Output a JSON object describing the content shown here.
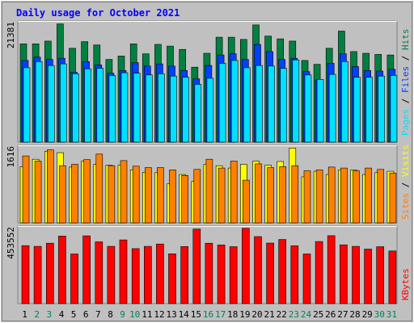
{
  "title": "Daily usage for October 2021",
  "colors": {
    "background": "#c0c0c0",
    "frame": "#808080",
    "hits": "#008040",
    "files": "#0040ff",
    "pages": "#00e0ff",
    "visits": "#ffff00",
    "sites": "#ff8000",
    "kbytes": "#ff0000",
    "title": "#0000ff",
    "weekday_label": "#000000",
    "weekend_label": "#00805c"
  },
  "legend_top": [
    "Hits",
    "Files",
    "Pages"
  ],
  "legend_middle": [
    "Visits",
    "Sites"
  ],
  "legend_bottom": [
    "KBytes"
  ],
  "chart_data": {
    "type": "bar",
    "title": "Daily usage for October 2021",
    "categories": [
      "1",
      "2",
      "3",
      "4",
      "5",
      "6",
      "7",
      "8",
      "9",
      "10",
      "11",
      "12",
      "13",
      "14",
      "15",
      "16",
      "17",
      "18",
      "19",
      "20",
      "21",
      "22",
      "23",
      "24",
      "25",
      "26",
      "27",
      "28",
      "29",
      "30",
      "31"
    ],
    "weekend_days": [
      "2",
      "3",
      "9",
      "10",
      "16",
      "17",
      "23",
      "24",
      "30",
      "31"
    ],
    "panels": [
      {
        "name": "hits-files-pages",
        "max_label": "21381",
        "ylim": [
          0,
          21381
        ],
        "series": [
          {
            "name": "Hits",
            "values": [
              17700,
              17700,
              18200,
              21300,
              16900,
              18100,
              17500,
              14900,
              15500,
              17700,
              15900,
              17600,
              17300,
              16700,
              13500,
              16000,
              18900,
              18900,
              18500,
              21100,
              19100,
              18600,
              18200,
              14700,
              14000,
              16900,
              20000,
              16300,
              16000,
              15800,
              15700
            ]
          },
          {
            "name": "Files",
            "values": [
              14700,
              15300,
              14900,
              15100,
              12600,
              14500,
              13900,
              12400,
              12900,
              14300,
              13700,
              14100,
              13700,
              12900,
              11400,
              13800,
              15700,
              15900,
              14900,
              17600,
              16300,
              14900,
              15100,
              12700,
              11200,
              14200,
              15900,
              13600,
              12900,
              12800,
              13100
            ]
          },
          {
            "name": "Pages",
            "values": [
              13400,
              14500,
              13800,
              14100,
              12300,
              13200,
              13300,
              12000,
              12500,
              12400,
              12100,
              12300,
              11900,
              11700,
              10400,
              11500,
              14200,
              14700,
              13400,
              13800,
              13700,
              13300,
              14800,
              12100,
              11300,
              12200,
              14500,
              11700,
              11700,
              11900,
              12000
            ]
          }
        ]
      },
      {
        "name": "visits-sites",
        "max_label": "1616",
        "ylim": [
          0,
          1616
        ],
        "series": [
          {
            "name": "Visits",
            "values": [
              1210,
              1370,
              1540,
              1510,
              1200,
              1330,
              1260,
              1240,
              1240,
              1140,
              1090,
              1080,
              840,
              1040,
              890,
              1260,
              1230,
              1180,
              1260,
              1330,
              1240,
              1320,
              1610,
              990,
              1110,
              1040,
              1140,
              1140,
              1040,
              1080,
              1110
            ]
          },
          {
            "name": "Sites",
            "values": [
              1440,
              1330,
              1570,
              1230,
              1260,
              1360,
              1480,
              1230,
              1340,
              1220,
              1190,
              1190,
              1140,
              1020,
              1150,
              1370,
              1180,
              1330,
              920,
              1270,
              1190,
              1210,
              1230,
              1120,
              1140,
              1200,
              1180,
              1120,
              1180,
              1150,
              1070
            ]
          }
        ]
      },
      {
        "name": "kbytes",
        "max_label": "453552",
        "ylim": [
          0,
          453552
        ],
        "series": [
          {
            "name": "KBytes",
            "values": [
              350000,
              346000,
              365000,
              408000,
              300000,
              409000,
              373000,
              346000,
              385000,
              332000,
              346000,
              360000,
              301000,
              345000,
              450000,
              365000,
              354000,
              344000,
              455000,
              405000,
              366000,
              387000,
              349000,
              300000,
              375000,
              410000,
              355000,
              346000,
              329000,
              344000,
              318000
            ]
          }
        ]
      }
    ]
  }
}
